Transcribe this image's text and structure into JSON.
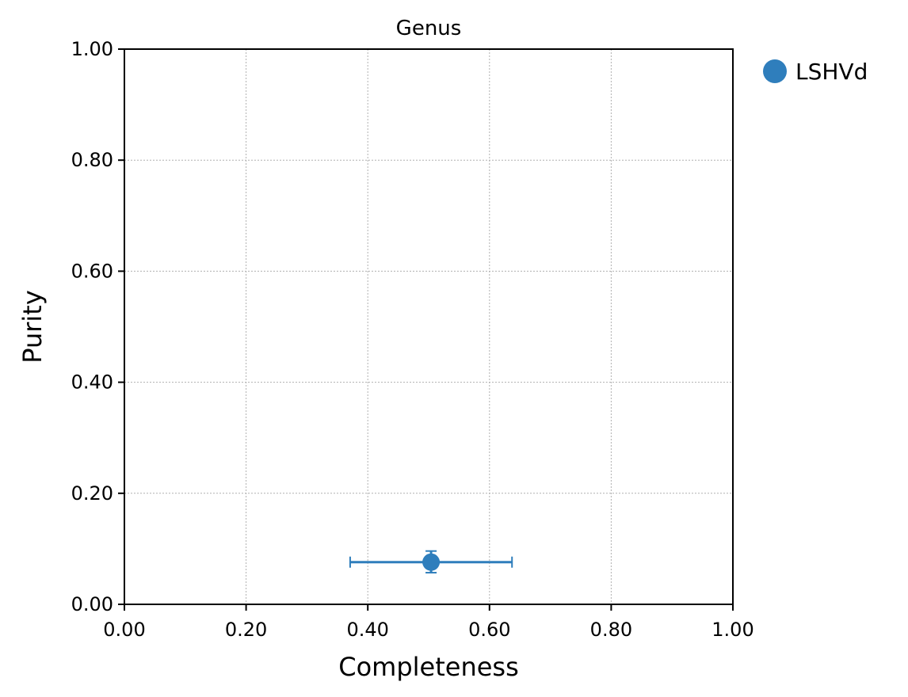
{
  "chart_data": {
    "type": "scatter",
    "title": "Genus",
    "xlabel": "Completeness",
    "ylabel": "Purity",
    "xlim": [
      0.0,
      1.0
    ],
    "ylim": [
      0.0,
      1.0
    ],
    "xticks": [
      "0.00",
      "0.20",
      "0.40",
      "0.60",
      "0.80",
      "1.00"
    ],
    "yticks": [
      "0.00",
      "0.20",
      "0.40",
      "0.60",
      "0.80",
      "1.00"
    ],
    "grid": true,
    "legend_position": "outside top-right",
    "series": [
      {
        "name": "LSHVd",
        "color": "#2f7ebc",
        "points": [
          {
            "x": 0.504,
            "y": 0.076,
            "x_err": [
              0.371,
              0.637
            ],
            "y_err": [
              0.057,
              0.096
            ]
          }
        ]
      }
    ]
  }
}
